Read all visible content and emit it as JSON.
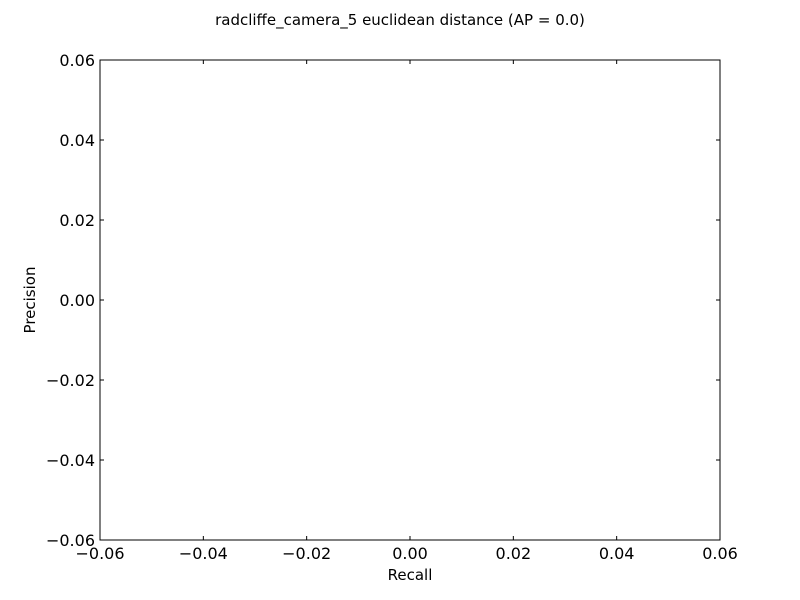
{
  "chart_data": {
    "type": "line",
    "title": "radcliffe_camera_5 euclidean distance  (AP = 0.0)",
    "xlabel": "Recall",
    "ylabel": "Precision",
    "xlim": [
      -0.06,
      0.06
    ],
    "ylim": [
      -0.06,
      0.06
    ],
    "x_ticks": [
      -0.06,
      -0.04,
      -0.02,
      0.0,
      0.02,
      0.04,
      0.06
    ],
    "y_ticks": [
      -0.06,
      -0.04,
      -0.02,
      0.0,
      0.02,
      0.04,
      0.06
    ],
    "x_tick_labels": [
      "−0.06",
      "−0.04",
      "−0.02",
      "0.00",
      "0.02",
      "0.04",
      "0.06"
    ],
    "y_tick_labels": [
      "−0.06",
      "−0.04",
      "−0.02",
      "0.00",
      "0.02",
      "0.04",
      "0.06"
    ],
    "grid": false,
    "series": []
  }
}
